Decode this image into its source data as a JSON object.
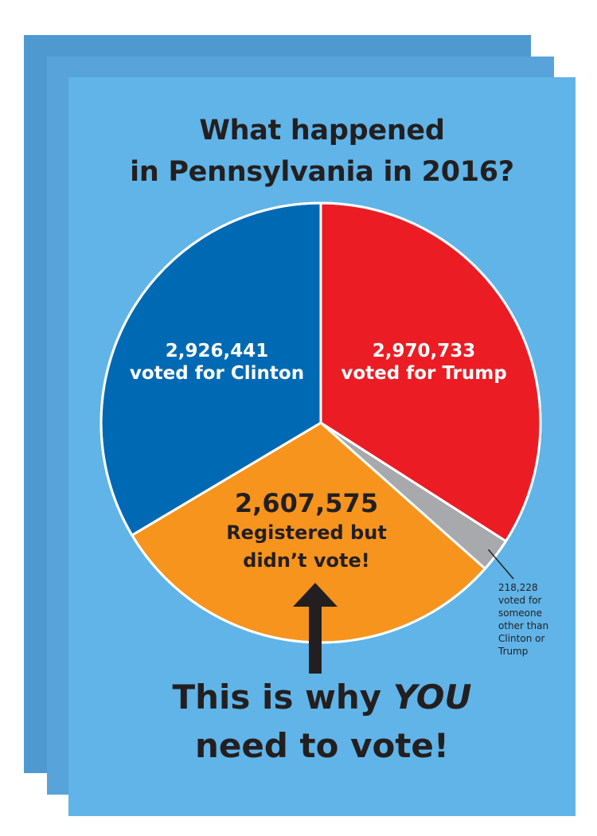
{
  "title": {
    "line1": "What happened",
    "line2": "in Pennsylvania in 2016?"
  },
  "chart_data": {
    "type": "pie",
    "title": "What happened in Pennsylvania in 2016?",
    "slices": [
      {
        "label": "voted for Trump",
        "value": 2970733,
        "value_text": "2,970,733",
        "color": "#ec1c24"
      },
      {
        "label": "voted for someone other than Clinton or Trump",
        "value": 218228,
        "value_text": "218,228",
        "color": "#a7a9ac"
      },
      {
        "label": "Registered but didn’t vote!",
        "value": 2607575,
        "value_text": "2,607,575",
        "color": "#f7941d"
      },
      {
        "label": "voted for Clinton",
        "value": 2926441,
        "value_text": "2,926,441",
        "color": "#0069b4"
      }
    ]
  },
  "labels": {
    "clinton_value": "2,926,441",
    "clinton_text": "voted for Clinton",
    "trump_value": "2,970,733",
    "trump_text": "voted for Trump",
    "nonvote_value": "2,607,575",
    "nonvote_line1": "Registered but",
    "nonvote_line2": "didn’t vote!",
    "other_value": "218,228",
    "other_line1": "voted for",
    "other_line2": "someone",
    "other_line3": "other than",
    "other_line4": "Clinton or",
    "other_line5": "Trump"
  },
  "cta": {
    "line1_pre": "This is why ",
    "line1_em": "YOU",
    "line2": "need to vote!"
  },
  "colors": {
    "card_back": "#4f99d1",
    "card_front": "#60b4e7",
    "text_dark": "#231f20"
  }
}
